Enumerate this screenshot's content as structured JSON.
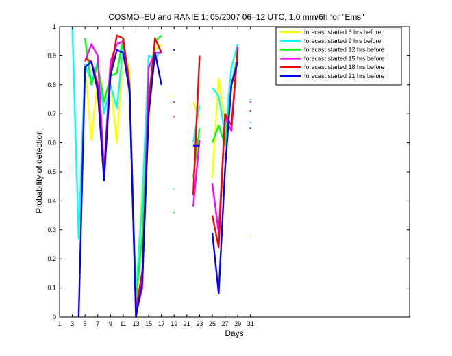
{
  "chart_data": {
    "type": "line",
    "title": "COSMO–EU and RANIE 1: 05/2007 06–12 UTC, 1.0 mm/6h for \"Ems\"",
    "xlabel": "Days",
    "ylabel": "Probability of detection",
    "xlim": [
      1,
      56
    ],
    "ylim": [
      0,
      1
    ],
    "xticks": [
      1,
      3,
      5,
      7,
      9,
      11,
      13,
      15,
      17,
      19,
      21,
      23,
      25,
      27,
      29,
      31
    ],
    "yticks": [
      0,
      0.1,
      0.2,
      0.3,
      0.4,
      0.5,
      0.6,
      0.7,
      0.8,
      0.9,
      1
    ],
    "ytick_labels": [
      "0",
      "0.1",
      "0.2",
      "0.3",
      "0.4",
      "0.5",
      "0.6",
      "0.7",
      "0.8",
      "0.9",
      "1"
    ],
    "legend_position": "top-right",
    "series": [
      {
        "name": "forecast started 6 hrs before",
        "color": "#ffff00",
        "points": [
          [
            5,
            0.87
          ],
          [
            6,
            0.61
          ],
          [
            7,
            0.82
          ],
          [
            8,
            0.75
          ],
          [
            9,
            0.81
          ],
          [
            10,
            0.6
          ],
          [
            11,
            0.92
          ],
          [
            12,
            0.85
          ],
          [
            13,
            0.04
          ],
          [
            14,
            0.45
          ],
          [
            15,
            0.65
          ],
          [
            16,
            0.92
          ],
          [
            17,
            0.94
          ],
          null,
          [
            19,
            0.76
          ],
          null,
          [
            22,
            0.74
          ],
          [
            23,
            0.69
          ],
          null,
          [
            25,
            0.48
          ],
          [
            26,
            0.82
          ],
          [
            27,
            0.66
          ],
          [
            28,
            0.77
          ],
          [
            29,
            0.92
          ],
          null,
          [
            31,
            0.28
          ]
        ]
      },
      {
        "name": "forecast started 9 hrs before",
        "color": "#00ffff",
        "points": [
          [
            3,
            1.0
          ],
          [
            4,
            0.27
          ],
          [
            5,
            0.87
          ],
          [
            6,
            0.81
          ],
          [
            7,
            0.88
          ],
          [
            8,
            0.7
          ],
          [
            9,
            0.8
          ],
          [
            10,
            0.72
          ],
          [
            11,
            0.93
          ],
          [
            12,
            0.8
          ],
          [
            13,
            0.07
          ],
          [
            14,
            0.4
          ],
          [
            15,
            0.9
          ],
          [
            16,
            0.89
          ],
          [
            17,
            0.92
          ],
          null,
          [
            19,
            0.44
          ],
          null,
          [
            22,
            0.6
          ],
          [
            23,
            0.73
          ],
          null,
          [
            25,
            0.79
          ],
          [
            26,
            0.76
          ],
          [
            27,
            0.63
          ],
          [
            28,
            0.86
          ],
          [
            29,
            0.94
          ],
          null,
          [
            31,
            0.67
          ]
        ]
      },
      {
        "name": "forecast started 12 hrs before",
        "color": "#00ff00",
        "points": [
          [
            5,
            0.96
          ],
          [
            6,
            0.8
          ],
          [
            7,
            0.87
          ],
          [
            8,
            0.74
          ],
          [
            9,
            0.83
          ],
          [
            10,
            0.84
          ],
          [
            11,
            0.96
          ],
          [
            12,
            0.76
          ],
          [
            13,
            0.05
          ],
          [
            14,
            0.28
          ],
          [
            15,
            0.76
          ],
          [
            16,
            0.95
          ],
          [
            17,
            0.97
          ],
          null,
          [
            19,
            0.36
          ],
          null,
          [
            22,
            0.48
          ],
          [
            23,
            0.65
          ],
          null,
          [
            25,
            0.6
          ],
          [
            26,
            0.66
          ],
          [
            27,
            0.59
          ],
          [
            28,
            0.8
          ],
          [
            29,
            0.9
          ],
          null,
          [
            31,
            0.75
          ]
        ]
      },
      {
        "name": "forecast started 15 hrs before",
        "color": "#ff00ff",
        "points": [
          [
            5,
            0.88
          ],
          [
            6,
            0.94
          ],
          [
            7,
            0.9
          ],
          [
            8,
            0.5
          ],
          [
            9,
            0.88
          ],
          [
            10,
            0.94
          ],
          [
            11,
            0.95
          ],
          [
            12,
            0.8
          ],
          [
            13,
            0.01
          ],
          [
            14,
            0.1
          ],
          [
            15,
            0.86
          ],
          [
            16,
            0.91
          ],
          [
            17,
            0.91
          ],
          null,
          [
            19,
            0.69
          ],
          null,
          [
            22,
            0.38
          ],
          [
            23,
            0.61
          ],
          null,
          [
            25,
            0.46
          ],
          [
            26,
            0.29
          ],
          [
            27,
            0.69
          ],
          [
            28,
            0.64
          ],
          [
            29,
            0.93
          ],
          null,
          [
            31,
            0.74
          ]
        ]
      },
      {
        "name": "forecast started 18 hrs before",
        "color": "#ff0000",
        "points": [
          [
            5,
            0.89
          ],
          [
            6,
            0.88
          ],
          [
            7,
            0.8
          ],
          [
            8,
            0.5
          ],
          [
            9,
            0.84
          ],
          [
            10,
            0.97
          ],
          [
            11,
            0.96
          ],
          [
            12,
            0.8
          ],
          [
            13,
            0.02
          ],
          [
            14,
            0.16
          ],
          [
            15,
            0.73
          ],
          [
            16,
            0.96
          ],
          [
            17,
            0.91
          ],
          null,
          [
            19,
            0.74
          ],
          null,
          [
            22,
            0.42
          ],
          [
            23,
            0.9
          ],
          null,
          [
            25,
            0.35
          ],
          [
            26,
            0.24
          ],
          [
            27,
            0.7
          ],
          [
            28,
            0.66
          ],
          [
            29,
            0.92
          ],
          null,
          [
            31,
            0.71
          ]
        ]
      },
      {
        "name": "forecast started 21 hrs before",
        "color": "#0000ff",
        "points": [
          [
            4,
            0.0
          ],
          [
            5,
            0.86
          ],
          [
            6,
            0.88
          ],
          [
            7,
            0.78
          ],
          [
            8,
            0.47
          ],
          [
            9,
            0.83
          ],
          [
            10,
            0.92
          ],
          [
            11,
            0.91
          ],
          [
            12,
            0.78
          ],
          [
            13,
            0.0
          ],
          [
            14,
            0.12
          ],
          [
            15,
            0.7
          ],
          [
            16,
            0.91
          ],
          [
            17,
            0.8
          ],
          null,
          [
            19,
            0.92
          ],
          null,
          [
            22,
            0.59
          ],
          [
            23,
            0.59
          ],
          null,
          [
            25,
            0.29
          ],
          [
            26,
            0.08
          ],
          [
            27,
            0.51
          ],
          [
            28,
            0.8
          ],
          [
            29,
            0.88
          ],
          null,
          [
            31,
            0.65
          ]
        ]
      }
    ]
  }
}
